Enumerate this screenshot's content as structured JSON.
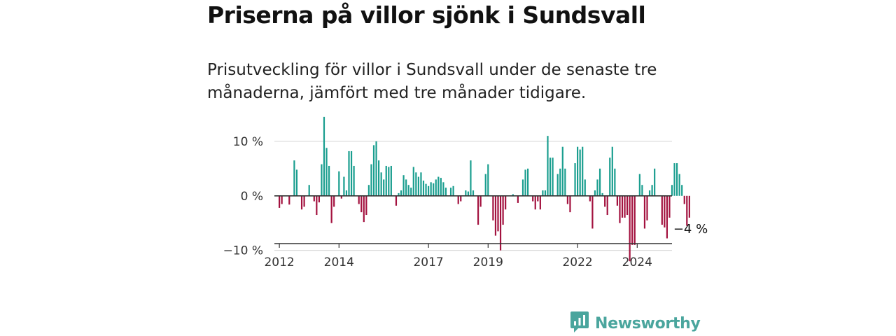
{
  "title": "Priserna på villor sjönk i Sundsvall",
  "subtitle": "Prisutveckling för villor i Sundsvall under de senaste tre månaderna, jämfört med tre månader tidigare.",
  "brand": {
    "name": "Newsworthy",
    "icon": "newsworthy-logo-icon"
  },
  "colors": {
    "positive": "#1a9e8f",
    "negative": "#a3123f",
    "brand": "#4aa59d"
  },
  "chart_data": {
    "type": "bar",
    "title": "Priserna på villor sjönk i Sundsvall",
    "xlabel": "",
    "ylabel": "",
    "ylim": [
      -13,
      15
    ],
    "xlim": [
      "2011-11",
      "2025-03"
    ],
    "grid": true,
    "legend": "none",
    "y_ticks": [
      {
        "value": 10,
        "label": "10 %"
      },
      {
        "value": 0,
        "label": "0 %"
      },
      {
        "value": -10,
        "label": "−10 %"
      }
    ],
    "x_ticks": [
      {
        "value": "2012-01",
        "label": "2012"
      },
      {
        "value": "2014-01",
        "label": "2014"
      },
      {
        "value": "2017-01",
        "label": "2017"
      },
      {
        "value": "2019-01",
        "label": "2019"
      },
      {
        "value": "2022-01",
        "label": "2022"
      },
      {
        "value": "2024-01",
        "label": "2024"
      }
    ],
    "end_label": "−4 %",
    "start": "2012-01",
    "values": [
      -2.2,
      -1.5,
      0,
      0,
      -1.6,
      0,
      6.5,
      4.8,
      0,
      -2.5,
      -2.0,
      0,
      2.0,
      0,
      -1.0,
      -3.5,
      -1.2,
      5.8,
      14.5,
      8.8,
      5.5,
      -5.0,
      -2.0,
      0,
      4.5,
      -0.5,
      3.5,
      1.0,
      8.2,
      8.2,
      5.5,
      0,
      -1.5,
      -3.0,
      -4.8,
      -3.5,
      2.0,
      5.8,
      9.3,
      10.0,
      6.5,
      4.3,
      3.0,
      5.5,
      5.3,
      5.5,
      0,
      -1.8,
      0.5,
      1.0,
      3.8,
      3.0,
      2.0,
      1.5,
      5.3,
      4.3,
      3.5,
      4.3,
      2.8,
      2.2,
      1.8,
      2.5,
      2.3,
      3.0,
      3.5,
      3.3,
      2.5,
      1.5,
      0,
      1.5,
      1.8,
      0,
      -1.5,
      -1.0,
      0,
      1.0,
      0.8,
      6.5,
      1.0,
      0,
      -5.3,
      -2.0,
      0,
      4.0,
      5.8,
      0,
      -4.5,
      -7.3,
      -6.5,
      -10.0,
      -5.3,
      -2.5,
      0,
      0,
      0.3,
      0,
      -1.3,
      0,
      3.0,
      4.8,
      5.0,
      0,
      -1.0,
      -2.5,
      -1.0,
      -2.5,
      1.0,
      1.0,
      11.0,
      7.0,
      7.0,
      0,
      4.0,
      5.0,
      9.0,
      5.0,
      -1.5,
      -3.0,
      0,
      6.0,
      9.0,
      8.5,
      9.0,
      3.0,
      0,
      -1.0,
      -6.0,
      1.0,
      3.0,
      5.0,
      0.5,
      -2.0,
      -3.5,
      7.0,
      9.0,
      5.0,
      -1.8,
      -5.0,
      -4.0,
      -4.0,
      -3.5,
      -12.0,
      -9.0,
      -9.0,
      0,
      4.0,
      2.0,
      -6.0,
      -4.5,
      1.0,
      2.0,
      5.0,
      0,
      0,
      -5.3,
      -5.8,
      -7.8,
      -4.0,
      2.0,
      6.0,
      6.0,
      4.0,
      2.0,
      -1.5,
      -5.5,
      -4.0
    ]
  }
}
